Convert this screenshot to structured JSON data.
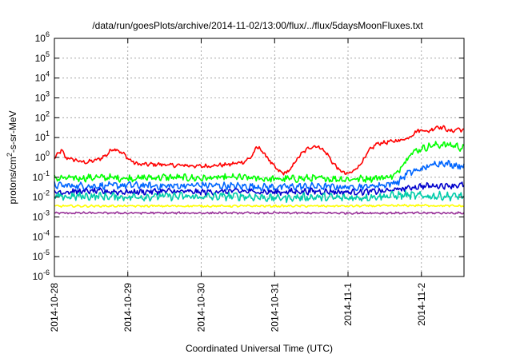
{
  "chart_data": {
    "type": "line",
    "title": "/data/run/goesPlots/archive/2014-11-02/13:00/flux/../flux/5daysMoonFluxes.txt",
    "xlabel": "Coordinated Universal Time (UTC)",
    "ylabel": {
      "base": "protons/cm",
      "exp": "2",
      "rest": "-s-sr-MeV"
    },
    "x_range_days": [
      0,
      5.58
    ],
    "x_ticks": [
      {
        "pos": 0,
        "label": "2014-10-28"
      },
      {
        "pos": 1,
        "label": "2014-10-29"
      },
      {
        "pos": 2,
        "label": "2014-10-30"
      },
      {
        "pos": 3,
        "label": "2014-10-31"
      },
      {
        "pos": 4,
        "label": "2014-11-1"
      },
      {
        "pos": 5,
        "label": "2014-11-2"
      }
    ],
    "y_scale": "log",
    "y_range_exp": [
      -6,
      6
    ],
    "y_ticks": [
      {
        "exp": -6,
        "base": "10",
        "sup": "-6"
      },
      {
        "exp": -5,
        "base": "10",
        "sup": "-5"
      },
      {
        "exp": -4,
        "base": "10",
        "sup": "-4"
      },
      {
        "exp": -3,
        "base": "10",
        "sup": "-3"
      },
      {
        "exp": -2,
        "base": "10",
        "sup": "-2"
      },
      {
        "exp": -1,
        "base": "10",
        "sup": "-1"
      },
      {
        "exp": 0,
        "base": "10",
        "sup": "0"
      },
      {
        "exp": 1,
        "base": "10",
        "sup": "1"
      },
      {
        "exp": 2,
        "base": "10",
        "sup": "2"
      },
      {
        "exp": 3,
        "base": "10",
        "sup": "3"
      },
      {
        "exp": 4,
        "base": "10",
        "sup": "4"
      },
      {
        "exp": 5,
        "base": "10",
        "sup": "5"
      },
      {
        "exp": 6,
        "base": "10",
        "sup": "6"
      }
    ],
    "grid": true,
    "series": [
      {
        "color": "#ff0000",
        "noise": 0.08,
        "points": [
          [
            0,
            -0.1
          ],
          [
            0.05,
            0.2
          ],
          [
            0.1,
            0.35
          ],
          [
            0.15,
            0.0
          ],
          [
            0.2,
            -0.05
          ],
          [
            0.3,
            -0.15
          ],
          [
            0.4,
            -0.25
          ],
          [
            0.5,
            -0.2
          ],
          [
            0.6,
            -0.1
          ],
          [
            0.7,
            0.1
          ],
          [
            0.8,
            0.45
          ],
          [
            0.85,
            0.4
          ],
          [
            0.95,
            0.15
          ],
          [
            1.05,
            -0.2
          ],
          [
            1.15,
            -0.35
          ],
          [
            1.3,
            -0.35
          ],
          [
            1.45,
            -0.35
          ],
          [
            1.6,
            -0.4
          ],
          [
            1.8,
            -0.4
          ],
          [
            2.0,
            -0.45
          ],
          [
            2.2,
            -0.4
          ],
          [
            2.4,
            -0.35
          ],
          [
            2.6,
            -0.2
          ],
          [
            2.7,
            0.1
          ],
          [
            2.75,
            0.5
          ],
          [
            2.8,
            0.45
          ],
          [
            2.9,
            0.0
          ],
          [
            3.0,
            -0.5
          ],
          [
            3.1,
            -0.8
          ],
          [
            3.2,
            -0.7
          ],
          [
            3.3,
            -0.1
          ],
          [
            3.4,
            0.3
          ],
          [
            3.5,
            0.55
          ],
          [
            3.6,
            0.55
          ],
          [
            3.7,
            0.25
          ],
          [
            3.8,
            -0.3
          ],
          [
            3.9,
            -0.7
          ],
          [
            4.0,
            -0.85
          ],
          [
            4.1,
            -0.6
          ],
          [
            4.2,
            -0.2
          ],
          [
            4.3,
            0.4
          ],
          [
            4.4,
            0.7
          ],
          [
            4.6,
            0.8
          ],
          [
            4.75,
            0.9
          ],
          [
            4.85,
            1.05
          ],
          [
            4.9,
            1.25
          ],
          [
            5.0,
            1.4
          ],
          [
            5.1,
            1.3
          ],
          [
            5.2,
            1.55
          ],
          [
            5.3,
            1.5
          ],
          [
            5.4,
            1.3
          ],
          [
            5.5,
            1.45
          ],
          [
            5.58,
            1.35
          ]
        ]
      },
      {
        "color": "#00ff00",
        "noise": 0.14,
        "points": [
          [
            0,
            -1.05
          ],
          [
            0.3,
            -1.05
          ],
          [
            0.6,
            -1.0
          ],
          [
            1.0,
            -1.05
          ],
          [
            1.5,
            -1.0
          ],
          [
            2.0,
            -1.05
          ],
          [
            2.5,
            -1.0
          ],
          [
            3.0,
            -1.1
          ],
          [
            3.5,
            -1.05
          ],
          [
            4.0,
            -1.1
          ],
          [
            4.3,
            -1.05
          ],
          [
            4.5,
            -1.0
          ],
          [
            4.65,
            -0.9
          ],
          [
            4.75,
            -0.3
          ],
          [
            4.85,
            0.2
          ],
          [
            5.0,
            0.45
          ],
          [
            5.15,
            0.6
          ],
          [
            5.3,
            0.65
          ],
          [
            5.45,
            0.6
          ],
          [
            5.58,
            0.45
          ]
        ]
      },
      {
        "color": "#0066ff",
        "noise": 0.14,
        "points": [
          [
            0,
            -1.4
          ],
          [
            0.5,
            -1.45
          ],
          [
            1.0,
            -1.4
          ],
          [
            1.5,
            -1.45
          ],
          [
            2.0,
            -1.4
          ],
          [
            2.5,
            -1.45
          ],
          [
            3.0,
            -1.5
          ],
          [
            3.5,
            -1.45
          ],
          [
            4.0,
            -1.5
          ],
          [
            4.3,
            -1.45
          ],
          [
            4.55,
            -1.35
          ],
          [
            4.7,
            -1.2
          ],
          [
            4.8,
            -0.8
          ],
          [
            4.95,
            -0.65
          ],
          [
            5.1,
            -0.45
          ],
          [
            5.25,
            -0.25
          ],
          [
            5.4,
            -0.35
          ],
          [
            5.58,
            -0.45
          ]
        ]
      },
      {
        "color": "#0000cc",
        "noise": 0.12,
        "points": [
          [
            0,
            -1.75
          ],
          [
            0.5,
            -1.7
          ],
          [
            1.0,
            -1.75
          ],
          [
            1.5,
            -1.7
          ],
          [
            2.0,
            -1.75
          ],
          [
            2.5,
            -1.7
          ],
          [
            3.0,
            -1.75
          ],
          [
            3.5,
            -1.7
          ],
          [
            4.0,
            -1.75
          ],
          [
            4.5,
            -1.7
          ],
          [
            4.8,
            -1.55
          ],
          [
            5.0,
            -1.45
          ],
          [
            5.3,
            -1.42
          ],
          [
            5.58,
            -1.4
          ]
        ]
      },
      {
        "color": "#00ccaa",
        "noise": 0.16,
        "points": [
          [
            0,
            -2.0
          ],
          [
            0.5,
            -1.95
          ],
          [
            1.0,
            -2.0
          ],
          [
            1.5,
            -1.95
          ],
          [
            2.0,
            -2.0
          ],
          [
            2.5,
            -1.95
          ],
          [
            3.0,
            -2.05
          ],
          [
            3.5,
            -2.0
          ],
          [
            4.0,
            -2.05
          ],
          [
            4.5,
            -1.95
          ],
          [
            4.8,
            -1.9
          ],
          [
            5.0,
            -1.95
          ],
          [
            5.3,
            -1.95
          ],
          [
            5.58,
            -1.95
          ]
        ]
      },
      {
        "color": "#ffff00",
        "noise": 0.04,
        "points": [
          [
            0,
            -2.45
          ],
          [
            1.0,
            -2.45
          ],
          [
            2.0,
            -2.45
          ],
          [
            3.0,
            -2.45
          ],
          [
            4.0,
            -2.45
          ],
          [
            5.0,
            -2.42
          ],
          [
            5.58,
            -2.45
          ]
        ]
      },
      {
        "color": "#993399",
        "noise": 0.04,
        "points": [
          [
            0,
            -2.8
          ],
          [
            1.0,
            -2.8
          ],
          [
            2.0,
            -2.8
          ],
          [
            3.0,
            -2.8
          ],
          [
            4.0,
            -2.8
          ],
          [
            5.0,
            -2.8
          ],
          [
            5.58,
            -2.8
          ]
        ]
      }
    ]
  }
}
